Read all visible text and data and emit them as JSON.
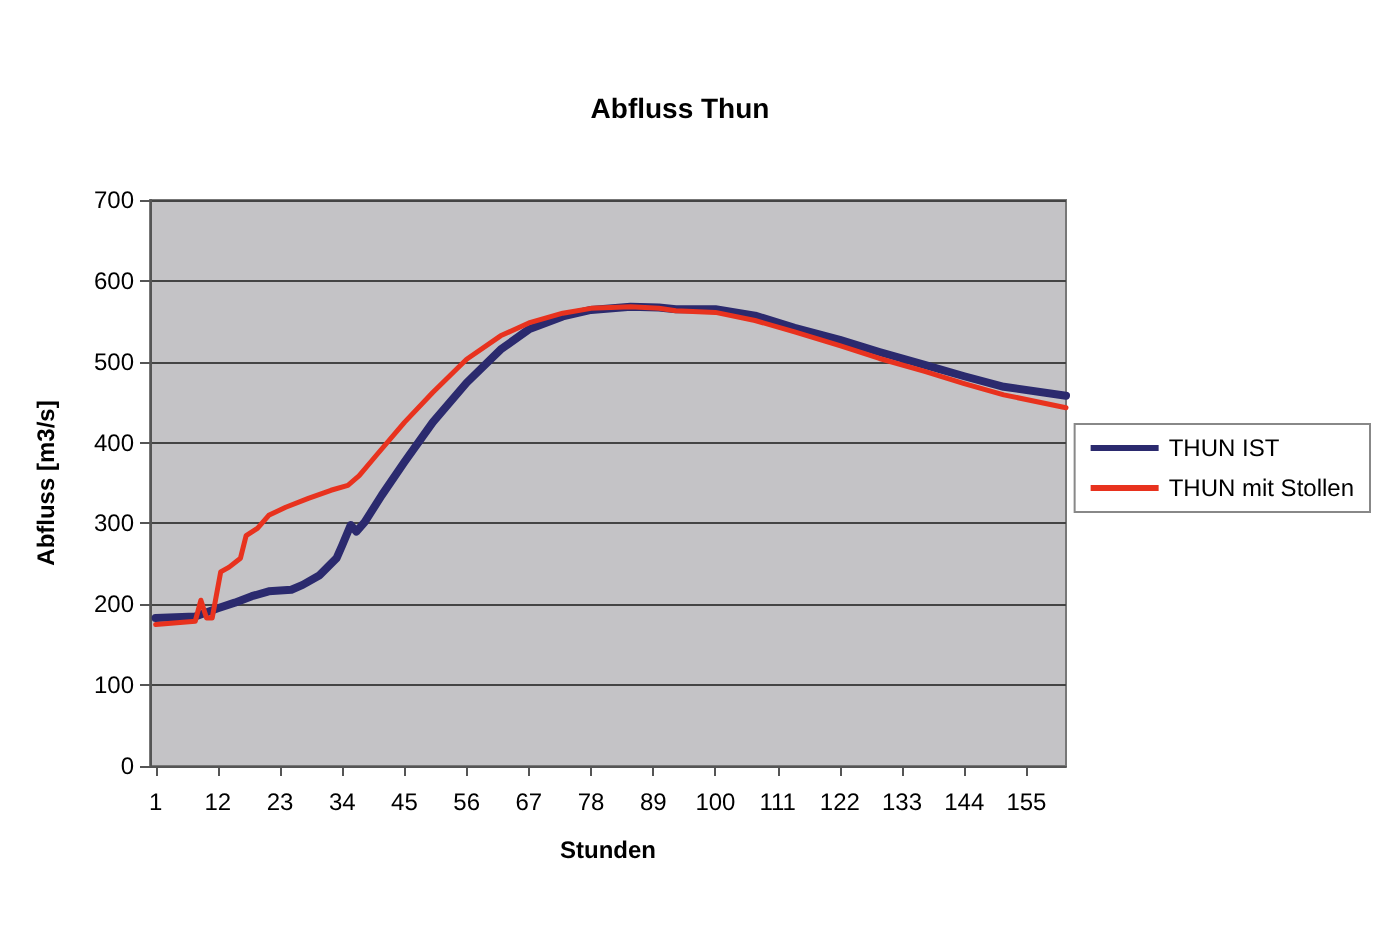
{
  "chart_data": {
    "type": "line",
    "title": "Abfluss Thun",
    "xlabel": "Stunden",
    "ylabel": "Abfluss [m3/s]",
    "xlim": [
      0,
      162
    ],
    "xticks": [
      1,
      12,
      23,
      34,
      45,
      56,
      67,
      78,
      89,
      100,
      111,
      122,
      133,
      144,
      155
    ],
    "ylim": [
      0,
      700
    ],
    "yticks": [
      0,
      100,
      200,
      300,
      400,
      500,
      600,
      700
    ],
    "grid": "y",
    "legend": "right",
    "marker": "none",
    "line_style": "solid",
    "series": [
      {
        "name": "THUN IST",
        "color": "#2b2a6e",
        "x": [
          1,
          8,
          12,
          15,
          18,
          21,
          25,
          27,
          30,
          33,
          34,
          35.5,
          36.5,
          38,
          41,
          45,
          50,
          56,
          62,
          67,
          73,
          78,
          85,
          90,
          93,
          100,
          107,
          114,
          122,
          129,
          137,
          144,
          151,
          162
        ],
        "values": [
          183,
          185,
          195,
          202,
          210,
          216,
          218,
          224,
          236,
          257,
          273,
          298,
          290,
          302,
          335,
          376,
          425,
          474,
          515,
          540,
          556,
          564,
          568,
          567,
          565,
          565,
          557,
          542,
          527,
          512,
          496,
          482,
          469,
          458
        ]
      },
      {
        "name": "THUN mit Stollen",
        "color": "#e8321e",
        "x": [
          1,
          8,
          9,
          10,
          11,
          12.5,
          14,
          16,
          17,
          19,
          21,
          24,
          28,
          32,
          35,
          37,
          40,
          45,
          50,
          56,
          62,
          67,
          73,
          78,
          85,
          90,
          93,
          100,
          107,
          114,
          122,
          129,
          137,
          144,
          151,
          162
        ],
        "values": [
          175,
          179,
          205,
          183,
          183,
          240,
          246,
          257,
          285,
          294,
          310,
          320,
          331,
          341,
          347,
          359,
          384,
          425,
          462,
          503,
          532,
          548,
          560,
          566,
          568,
          566,
          563,
          561,
          551,
          537,
          520,
          504,
          488,
          473,
          459,
          443
        ]
      }
    ]
  }
}
